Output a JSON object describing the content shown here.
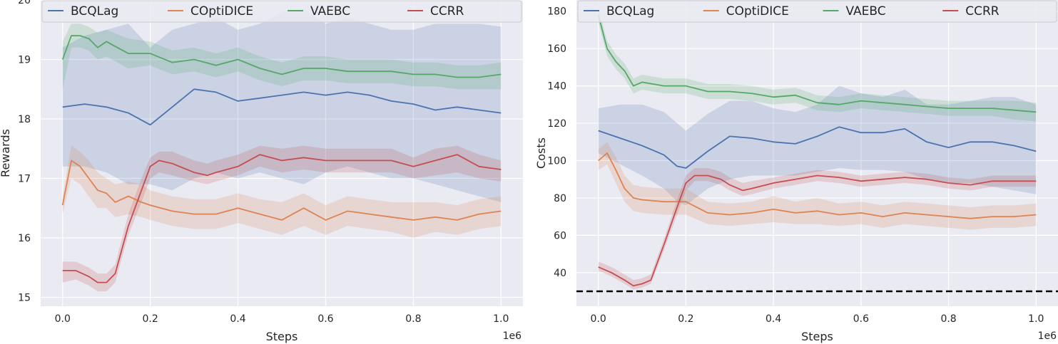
{
  "colors": {
    "BCQLag": "#4c72b0",
    "COptiDICE": "#dd8452",
    "VAEBC": "#55a868",
    "CCRR": "#c44e52",
    "background": "#eaeaf2",
    "grid": "#ffffff",
    "threshold": "#000000"
  },
  "chart_data": [
    {
      "type": "line",
      "title": "",
      "xlabel": "Steps",
      "ylabel": "Rewards",
      "x_multiplier": "1e6",
      "xlim": [
        -0.05,
        1.05
      ],
      "ylim": [
        14.85,
        20.0
      ],
      "xticks": [
        0.0,
        0.2,
        0.4,
        0.6,
        0.8,
        1.0
      ],
      "xtick_labels": [
        "0.0",
        "0.2",
        "0.4",
        "0.6",
        "0.8",
        "1.0"
      ],
      "yticks": [
        15,
        16,
        17,
        18,
        19,
        20
      ],
      "ytick_labels": [
        "15",
        "16",
        "17",
        "18",
        "19",
        "20"
      ],
      "legend_position": "top",
      "grid": true,
      "series": [
        {
          "name": "BCQLag",
          "x": [
            0.0,
            0.05,
            0.1,
            0.15,
            0.2,
            0.25,
            0.3,
            0.35,
            0.4,
            0.45,
            0.5,
            0.55,
            0.6,
            0.65,
            0.7,
            0.75,
            0.8,
            0.85,
            0.9,
            0.95,
            1.0
          ],
          "y": [
            18.2,
            18.25,
            18.2,
            18.1,
            17.9,
            18.2,
            18.5,
            18.45,
            18.3,
            18.35,
            18.4,
            18.45,
            18.4,
            18.45,
            18.4,
            18.3,
            18.25,
            18.15,
            18.2,
            18.15,
            18.1
          ],
          "lower": [
            17.2,
            17.2,
            17.1,
            16.9,
            16.9,
            16.8,
            17.0,
            17.1,
            17.0,
            17.1,
            17.0,
            16.9,
            17.1,
            17.2,
            17.1,
            17.0,
            17.0,
            16.9,
            16.8,
            16.7,
            16.6
          ],
          "upper": [
            19.2,
            19.4,
            19.5,
            19.6,
            19.2,
            19.5,
            19.6,
            19.7,
            19.5,
            19.6,
            19.8,
            19.85,
            19.6,
            19.7,
            19.6,
            19.5,
            19.5,
            19.6,
            19.6,
            19.6,
            19.55
          ]
        },
        {
          "name": "COptiDICE",
          "x": [
            0.0,
            0.02,
            0.04,
            0.06,
            0.08,
            0.1,
            0.12,
            0.15,
            0.18,
            0.2,
            0.25,
            0.3,
            0.35,
            0.4,
            0.45,
            0.5,
            0.55,
            0.6,
            0.65,
            0.7,
            0.75,
            0.8,
            0.85,
            0.9,
            0.95,
            1.0
          ],
          "y": [
            16.55,
            17.3,
            17.2,
            17.0,
            16.8,
            16.75,
            16.6,
            16.7,
            16.6,
            16.55,
            16.45,
            16.4,
            16.4,
            16.5,
            16.4,
            16.3,
            16.5,
            16.3,
            16.45,
            16.4,
            16.35,
            16.3,
            16.35,
            16.3,
            16.4,
            16.45
          ],
          "lower": [
            16.4,
            17.0,
            16.9,
            16.7,
            16.5,
            16.5,
            16.35,
            16.4,
            16.35,
            16.3,
            16.2,
            16.15,
            16.15,
            16.25,
            16.15,
            16.05,
            16.2,
            16.05,
            16.2,
            16.15,
            16.1,
            16.0,
            16.1,
            16.05,
            16.15,
            16.2
          ],
          "upper": [
            16.7,
            17.55,
            17.45,
            17.3,
            17.1,
            17.0,
            16.9,
            16.95,
            16.9,
            16.8,
            16.7,
            16.65,
            16.65,
            16.75,
            16.65,
            16.6,
            16.75,
            16.55,
            16.7,
            16.65,
            16.6,
            16.6,
            16.6,
            16.55,
            16.65,
            16.7
          ]
        },
        {
          "name": "VAEBC",
          "x": [
            0.0,
            0.02,
            0.04,
            0.06,
            0.08,
            0.1,
            0.15,
            0.2,
            0.25,
            0.3,
            0.35,
            0.4,
            0.45,
            0.5,
            0.55,
            0.6,
            0.65,
            0.7,
            0.75,
            0.8,
            0.85,
            0.9,
            0.95,
            1.0
          ],
          "y": [
            19.0,
            19.4,
            19.4,
            19.35,
            19.2,
            19.3,
            19.1,
            19.1,
            18.95,
            19.0,
            18.9,
            19.0,
            18.85,
            18.75,
            18.85,
            18.85,
            18.8,
            18.8,
            18.8,
            18.75,
            18.75,
            18.7,
            18.7,
            18.75
          ],
          "lower": [
            18.5,
            19.2,
            19.2,
            19.15,
            19.0,
            19.05,
            18.85,
            18.9,
            18.75,
            18.8,
            18.7,
            18.8,
            18.65,
            18.55,
            18.65,
            18.65,
            18.6,
            18.6,
            18.6,
            18.55,
            18.55,
            18.5,
            18.5,
            18.5
          ],
          "upper": [
            19.3,
            19.6,
            19.6,
            19.55,
            19.45,
            19.5,
            19.35,
            19.3,
            19.15,
            19.2,
            19.1,
            19.2,
            19.05,
            18.95,
            19.05,
            19.05,
            19.0,
            19.0,
            19.0,
            18.95,
            18.95,
            18.9,
            18.9,
            18.95
          ]
        },
        {
          "name": "CCRR",
          "x": [
            0.0,
            0.03,
            0.06,
            0.08,
            0.1,
            0.12,
            0.15,
            0.18,
            0.2,
            0.22,
            0.25,
            0.3,
            0.33,
            0.35,
            0.4,
            0.45,
            0.5,
            0.55,
            0.6,
            0.65,
            0.7,
            0.75,
            0.8,
            0.85,
            0.9,
            0.95,
            1.0
          ],
          "y": [
            15.45,
            15.45,
            15.35,
            15.25,
            15.25,
            15.4,
            16.2,
            16.8,
            17.2,
            17.3,
            17.25,
            17.1,
            17.05,
            17.1,
            17.2,
            17.4,
            17.3,
            17.35,
            17.3,
            17.3,
            17.3,
            17.3,
            17.2,
            17.3,
            17.4,
            17.2,
            17.15
          ],
          "lower": [
            15.25,
            15.3,
            15.2,
            15.1,
            15.1,
            15.25,
            16.05,
            16.6,
            17.0,
            17.1,
            17.05,
            16.95,
            16.9,
            16.95,
            17.05,
            17.2,
            17.1,
            17.15,
            17.1,
            17.1,
            17.1,
            17.1,
            17.0,
            17.05,
            17.1,
            17.0,
            16.95
          ],
          "upper": [
            15.6,
            15.6,
            15.5,
            15.4,
            15.4,
            15.55,
            16.4,
            17.0,
            17.35,
            17.45,
            17.45,
            17.3,
            17.25,
            17.3,
            17.4,
            17.55,
            17.5,
            17.55,
            17.5,
            17.5,
            17.5,
            17.5,
            17.35,
            17.5,
            17.55,
            17.4,
            17.3
          ]
        }
      ]
    },
    {
      "type": "line",
      "title": "",
      "xlabel": "Steps",
      "ylabel": "Costs",
      "x_multiplier": "1e6",
      "xlim": [
        -0.05,
        1.05
      ],
      "ylim": [
        22,
        186
      ],
      "xticks": [
        0.0,
        0.2,
        0.4,
        0.6,
        0.8,
        1.0
      ],
      "xtick_labels": [
        "0.0",
        "0.2",
        "0.4",
        "0.6",
        "0.8",
        "1.0"
      ],
      "yticks": [
        40,
        60,
        80,
        100,
        120,
        140,
        160,
        180
      ],
      "ytick_labels": [
        "40",
        "60",
        "80",
        "100",
        "120",
        "140",
        "160",
        "180"
      ],
      "legend_position": "top",
      "grid": true,
      "threshold": 30,
      "series": [
        {
          "name": "BCQLag",
          "x": [
            0.0,
            0.05,
            0.1,
            0.15,
            0.18,
            0.2,
            0.25,
            0.3,
            0.35,
            0.4,
            0.45,
            0.5,
            0.55,
            0.6,
            0.65,
            0.7,
            0.75,
            0.8,
            0.85,
            0.9,
            0.95,
            1.0
          ],
          "y": [
            116,
            112,
            108,
            103,
            97,
            96,
            105,
            113,
            112,
            110,
            109,
            113,
            118,
            115,
            115,
            117,
            110,
            107,
            110,
            110,
            108,
            105
          ],
          "lower": [
            104,
            98,
            92,
            85,
            78,
            76,
            85,
            90,
            92,
            92,
            92,
            94,
            96,
            95,
            95,
            94,
            90,
            88,
            88,
            86,
            84,
            82
          ],
          "upper": [
            128,
            130,
            130,
            126,
            120,
            116,
            125,
            132,
            132,
            128,
            126,
            130,
            140,
            136,
            134,
            138,
            130,
            130,
            132,
            134,
            134,
            130
          ]
        },
        {
          "name": "COptiDICE",
          "x": [
            0.0,
            0.02,
            0.04,
            0.06,
            0.08,
            0.1,
            0.15,
            0.2,
            0.25,
            0.3,
            0.35,
            0.4,
            0.45,
            0.5,
            0.55,
            0.6,
            0.65,
            0.7,
            0.75,
            0.8,
            0.85,
            0.9,
            0.95,
            1.0
          ],
          "y": [
            100,
            104,
            95,
            85,
            80,
            79,
            78,
            78,
            72,
            71,
            72,
            74,
            72,
            73,
            71,
            72,
            70,
            72,
            71,
            70,
            69,
            70,
            70,
            71
          ],
          "lower": [
            95,
            98,
            88,
            78,
            73,
            72,
            71,
            71,
            66,
            65,
            66,
            67,
            66,
            66,
            65,
            66,
            64,
            66,
            65,
            64,
            63,
            64,
            64,
            65
          ],
          "upper": [
            106,
            110,
            102,
            92,
            87,
            86,
            85,
            85,
            78,
            77,
            78,
            81,
            78,
            80,
            77,
            78,
            76,
            78,
            77,
            76,
            75,
            76,
            76,
            77
          ]
        },
        {
          "name": "VAEBC",
          "x": [
            0.0,
            0.02,
            0.04,
            0.06,
            0.08,
            0.1,
            0.15,
            0.2,
            0.25,
            0.3,
            0.35,
            0.4,
            0.45,
            0.5,
            0.55,
            0.6,
            0.65,
            0.7,
            0.75,
            0.8,
            0.85,
            0.9,
            0.95,
            1.0
          ],
          "y": [
            178,
            160,
            153,
            148,
            140,
            142,
            140,
            140,
            137,
            137,
            136,
            134,
            135,
            131,
            130,
            132,
            131,
            130,
            129,
            128,
            128,
            128,
            127,
            126
          ],
          "lower": [
            174,
            156,
            149,
            144,
            136,
            138,
            136,
            136,
            133,
            133,
            132,
            130,
            131,
            127,
            126,
            128,
            127,
            126,
            125,
            124,
            124,
            124,
            122,
            121
          ],
          "upper": [
            182,
            164,
            157,
            152,
            144,
            146,
            144,
            144,
            141,
            141,
            140,
            138,
            139,
            135,
            134,
            136,
            135,
            134,
            133,
            132,
            132,
            132,
            132,
            131
          ]
        },
        {
          "name": "CCRR",
          "x": [
            0.0,
            0.03,
            0.06,
            0.08,
            0.1,
            0.12,
            0.15,
            0.18,
            0.2,
            0.22,
            0.25,
            0.28,
            0.3,
            0.33,
            0.35,
            0.4,
            0.45,
            0.5,
            0.55,
            0.6,
            0.65,
            0.7,
            0.75,
            0.8,
            0.85,
            0.9,
            0.95,
            1.0
          ],
          "y": [
            43,
            40,
            36,
            33,
            34,
            36,
            55,
            75,
            88,
            92,
            92,
            90,
            87,
            84,
            85,
            88,
            90,
            92,
            91,
            89,
            90,
            91,
            90,
            88,
            87,
            89,
            89,
            89
          ],
          "lower": [
            41,
            38,
            34,
            31,
            32,
            34,
            52,
            71,
            84,
            89,
            89,
            87,
            84,
            81,
            82,
            85,
            87,
            89,
            88,
            86,
            87,
            88,
            87,
            85,
            84,
            86,
            86,
            86
          ],
          "upper": [
            46,
            43,
            39,
            36,
            37,
            39,
            58,
            79,
            92,
            96,
            96,
            94,
            91,
            88,
            89,
            91,
            93,
            95,
            94,
            92,
            93,
            94,
            93,
            91,
            90,
            92,
            92,
            92
          ]
        }
      ]
    }
  ]
}
